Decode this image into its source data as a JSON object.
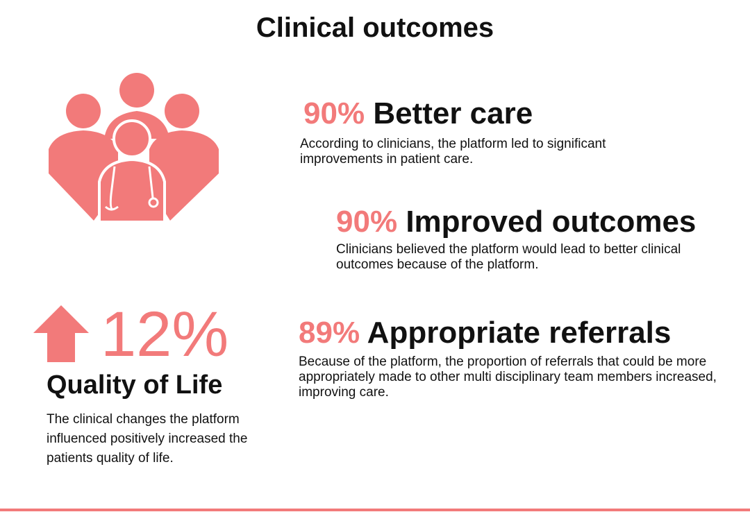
{
  "header": {
    "title": "Clinical outcomes"
  },
  "stats": [
    {
      "percent": "90%",
      "label": "Better care",
      "description": "According to clinicians, the platform led to significant improvements in patient care."
    },
    {
      "percent": "90%",
      "label": "Improved outcomes",
      "description": "Clinicians believed the platform would lead to better clinical outcomes because of the platform."
    },
    {
      "percent": "89%",
      "label": "Appropriate referrals",
      "description": "Because of  the platform, the proportion of referrals that could  be more appropriately made to other multi disciplinary team members increased, improving care."
    }
  ],
  "highlight": {
    "percent": "12%",
    "label": "Quality of Life",
    "description": "The clinical changes the platform influenced positively increased the patients quality of life."
  }
}
